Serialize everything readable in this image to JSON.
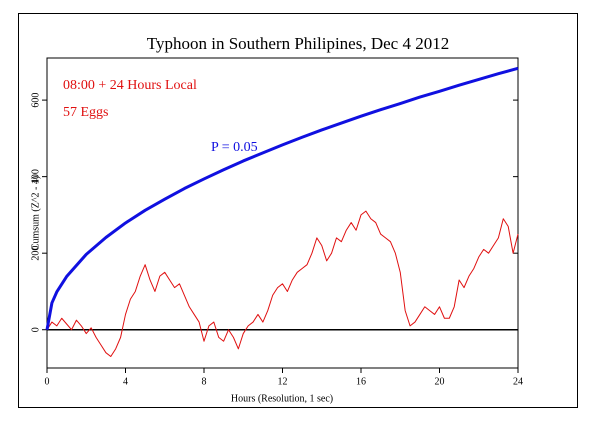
{
  "chart_data": {
    "type": "line",
    "title": "Typhoon in Southern Philipines, Dec 4 2012",
    "xlabel": "Hours (Resolution, 1 sec)",
    "ylabel": "Cumsum (Z^2 - 1)",
    "annotations": [
      "08:00 + 24 Hours Local",
      "57 Eggs",
      "P = 0.05"
    ],
    "xlim": [
      0,
      24
    ],
    "ylim": [
      -100,
      710
    ],
    "xticks": [
      0,
      4,
      8,
      12,
      16,
      20,
      24
    ],
    "yticks": [
      0,
      200,
      400,
      600
    ],
    "reference_line": 0,
    "series": [
      {
        "name": "P = 0.05",
        "color": "#1010e0",
        "x": [
          0,
          0.25,
          0.5,
          1,
          2,
          3,
          4,
          5,
          6,
          7,
          8,
          9,
          10,
          11,
          12,
          13,
          14,
          15,
          16,
          17,
          18,
          19,
          20,
          21,
          22,
          23,
          24
        ],
        "values": [
          0,
          70,
          99,
          139,
          197,
          241,
          279,
          312,
          341,
          369,
          394,
          418,
          441,
          462,
          483,
          503,
          522,
          540,
          558,
          575,
          591,
          608,
          623,
          639,
          654,
          669,
          683
        ]
      },
      {
        "name": "57 Eggs",
        "color": "#e01010",
        "x": [
          0,
          0.25,
          0.5,
          0.75,
          1,
          1.25,
          1.5,
          1.75,
          2,
          2.25,
          2.5,
          2.75,
          3,
          3.25,
          3.5,
          3.75,
          4,
          4.25,
          4.5,
          4.75,
          5,
          5.25,
          5.5,
          5.75,
          6,
          6.25,
          6.5,
          6.75,
          7,
          7.25,
          7.5,
          7.75,
          8,
          8.25,
          8.5,
          8.75,
          9,
          9.25,
          9.5,
          9.75,
          10,
          10.25,
          10.5,
          10.75,
          11,
          11.25,
          11.5,
          11.75,
          12,
          12.25,
          12.5,
          12.75,
          13,
          13.25,
          13.5,
          13.75,
          14,
          14.25,
          14.5,
          14.75,
          15,
          15.25,
          15.5,
          15.75,
          16,
          16.25,
          16.5,
          16.75,
          17,
          17.25,
          17.5,
          17.75,
          18,
          18.25,
          18.5,
          18.75,
          19,
          19.25,
          19.5,
          19.75,
          20,
          20.25,
          20.5,
          20.75,
          21,
          21.25,
          21.5,
          21.75,
          22,
          22.25,
          22.5,
          22.75,
          23,
          23.25,
          23.5,
          23.75,
          24
        ],
        "values": [
          0,
          20,
          10,
          30,
          15,
          0,
          25,
          10,
          -10,
          5,
          -20,
          -40,
          -60,
          -70,
          -50,
          -20,
          40,
          80,
          100,
          140,
          170,
          130,
          100,
          140,
          150,
          130,
          110,
          120,
          90,
          60,
          40,
          20,
          -30,
          10,
          20,
          -20,
          -30,
          0,
          -20,
          -50,
          -10,
          10,
          20,
          40,
          20,
          50,
          90,
          110,
          120,
          100,
          130,
          150,
          160,
          170,
          200,
          240,
          220,
          180,
          200,
          240,
          230,
          260,
          280,
          260,
          300,
          310,
          290,
          280,
          250,
          240,
          230,
          200,
          150,
          50,
          10,
          20,
          40,
          60,
          50,
          40,
          60,
          30,
          30,
          60,
          130,
          110,
          140,
          160,
          190,
          210,
          200,
          220,
          240,
          290,
          270,
          200,
          250
        ]
      }
    ]
  }
}
